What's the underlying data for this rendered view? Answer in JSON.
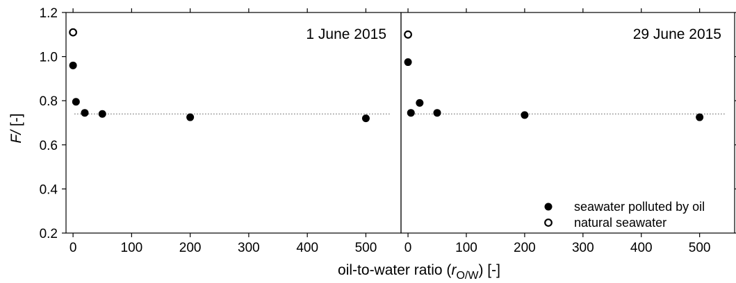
{
  "chart_data": {
    "type": "scatter",
    "ylabel": {
      "italic": "F/",
      "rest": " [-]"
    },
    "xlabel": {
      "prefix": "oil-to-water ratio (",
      "symbol": "r",
      "subscript": "O/W",
      "suffix": ") [-]"
    },
    "xlim": [
      -12,
      560
    ],
    "ylim": [
      0.2,
      1.2
    ],
    "xticks": [
      0,
      100,
      200,
      300,
      400,
      500
    ],
    "xtick_labels": [
      "0",
      "100",
      "200",
      "300",
      "400",
      "500"
    ],
    "yticks": [
      0.2,
      0.4,
      0.6,
      0.8,
      1.0,
      1.2
    ],
    "ytick_labels": [
      "0.2",
      "0.4",
      "0.6",
      "0.8",
      "1.0",
      "1.2"
    ],
    "reference_line": {
      "y": 0.74,
      "style": "dotted"
    },
    "legend": {
      "placement": "bottom-right of right panel",
      "entries": [
        {
          "label": "seawater polluted by oil",
          "marker": "filled-circle"
        },
        {
          "label": "natural seawater",
          "marker": "open-circle"
        }
      ]
    },
    "panels": [
      {
        "title": "1 June 2015",
        "series": [
          {
            "key": "polluted",
            "points": [
              [
                0,
                0.96
              ],
              [
                5,
                0.795
              ],
              [
                20,
                0.745
              ],
              [
                50,
                0.74
              ],
              [
                200,
                0.725
              ],
              [
                500,
                0.72
              ]
            ]
          },
          {
            "key": "natural",
            "points": [
              [
                0,
                1.11
              ]
            ]
          }
        ]
      },
      {
        "title": "29 June 2015",
        "series": [
          {
            "key": "polluted",
            "points": [
              [
                0,
                0.975
              ],
              [
                5,
                0.745
              ],
              [
                20,
                0.79
              ],
              [
                50,
                0.745
              ],
              [
                200,
                0.735
              ],
              [
                500,
                0.725
              ]
            ]
          },
          {
            "key": "natural",
            "points": [
              [
                0,
                1.1
              ]
            ]
          }
        ]
      }
    ]
  }
}
